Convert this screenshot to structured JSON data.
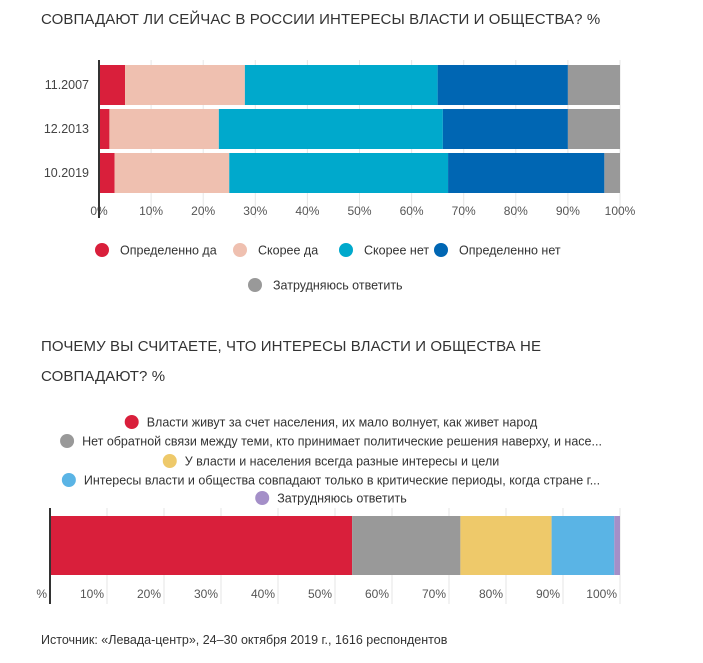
{
  "source": "Источник: «Левада-центр», 24–30 октября 2019 г., 1616 респондентов",
  "chart_data": [
    {
      "type": "bar",
      "orientation": "horizontal-stacked",
      "title": "СОВПАДАЮТ ЛИ СЕЙЧАС В РОССИИ ИНТЕРЕСЫ ВЛАСТИ И ОБЩЕСТВА? %",
      "categories": [
        "11.2007",
        "12.2013",
        "10.2019"
      ],
      "ticks": [
        "0%",
        "10%",
        "20%",
        "30%",
        "40%",
        "50%",
        "60%",
        "70%",
        "80%",
        "90%",
        "100%"
      ],
      "xlim": [
        0,
        100
      ],
      "grid": true,
      "legend_placement": "bottom",
      "series": [
        {
          "name": "Определенно да",
          "color": "#d91f3b",
          "values": [
            5,
            2,
            3
          ]
        },
        {
          "name": "Скорее да",
          "color": "#efc0b0",
          "values": [
            23,
            21,
            22
          ]
        },
        {
          "name": "Скорее нет",
          "color": "#00a9cc",
          "values": [
            37,
            43,
            42
          ]
        },
        {
          "name": "Определенно нет",
          "color": "#0066b3",
          "values": [
            25,
            24,
            30
          ]
        },
        {
          "name": "Затрудняюсь ответить",
          "color": "#999999",
          "values": [
            10,
            10,
            3
          ]
        }
      ]
    },
    {
      "type": "bar",
      "orientation": "horizontal-stacked",
      "title": "ПОЧЕМУ ВЫ СЧИТАЕТЕ, ЧТО ИНТЕРЕСЫ ВЛАСТИ И ОБЩЕСТВА НЕ СОВПАДАЮТ? %",
      "categories": [
        ""
      ],
      "ticks": [
        "%",
        "10%",
        "20%",
        "30%",
        "40%",
        "50%",
        "60%",
        "70%",
        "80%",
        "90%",
        "100%"
      ],
      "xlim": [
        0,
        100
      ],
      "grid": true,
      "legend_placement": "top",
      "series": [
        {
          "name": "Власти живут за счет населения, их мало волнует, как живет народ",
          "color": "#d91f3b",
          "values": [
            53
          ]
        },
        {
          "name": "Нет обратной связи между теми, кто принимает политические решения наверху, и насе...",
          "color": "#999999",
          "values": [
            19
          ]
        },
        {
          "name": "У власти и населения всегда разные интересы и цели",
          "color": "#eec96a",
          "values": [
            16
          ]
        },
        {
          "name": "Интересы власти и общества совпадают только в критические периоды, когда стране г...",
          "color": "#5ab4e5",
          "values": [
            11
          ]
        },
        {
          "name": "Затрудняюсь ответить",
          "color": "#a48fc8",
          "values": [
            1
          ]
        }
      ]
    }
  ]
}
